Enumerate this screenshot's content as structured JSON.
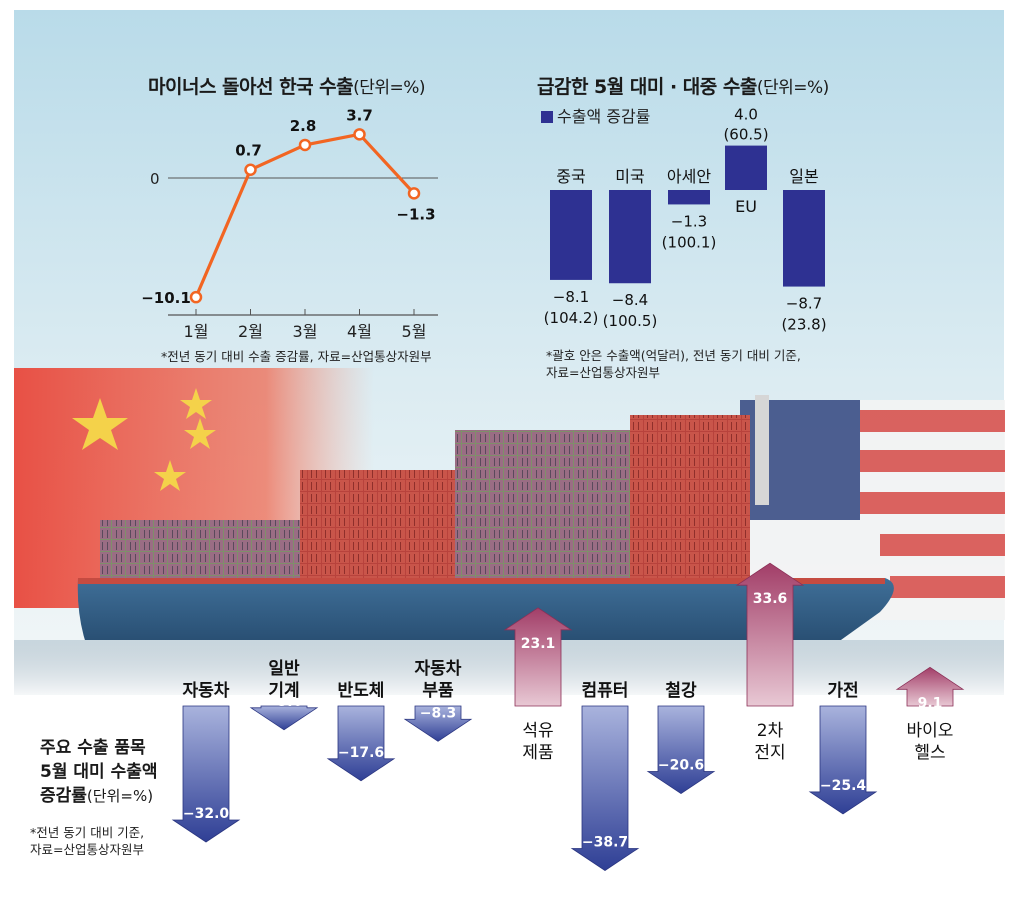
{
  "chart_data": [
    {
      "type": "line",
      "title": "마이너스 돌아선 한국 수출",
      "unit": "(단위=%)",
      "categories": [
        "1월",
        "2월",
        "3월",
        "4월",
        "5월"
      ],
      "values": [
        -10.1,
        0.7,
        2.8,
        3.7,
        -1.3
      ],
      "value_labels": [
        "−10.1",
        "0.7",
        "2.8",
        "3.7",
        "−1.3"
      ],
      "zero_label": "0",
      "ylim": [
        -11,
        5
      ],
      "note": "*전년 동기 대비 수출 증감률, 자료=산업통상자원부",
      "color": "#f26522"
    },
    {
      "type": "bar",
      "title": "급감한 5월 대미 · 대중 수출",
      "unit": "(단위=%)",
      "legend": "수출액 증감률",
      "categories": [
        "중국",
        "미국",
        "아세안",
        "EU",
        "일본"
      ],
      "values": [
        -8.1,
        -8.4,
        -1.3,
        4.0,
        -8.7
      ],
      "value_labels": [
        "−8.1",
        "−8.4",
        "−1.3",
        "4.0",
        "−8.7"
      ],
      "amount_labels": [
        "(104.2)",
        "(100.5)",
        "(100.1)",
        "(60.5)",
        "(23.8)"
      ],
      "note_lines": [
        "*괄호 안은 수출액(억달러), 전년 동기 대비 기준,",
        "자료=산업통상자원부"
      ],
      "color": "#2e3192"
    },
    {
      "type": "bar",
      "title_lines": [
        "주요 수출 품목",
        "5월 대미 수출액",
        "증감률"
      ],
      "unit": "(단위=%)",
      "categories": [
        [
          "자동차"
        ],
        [
          "일반",
          "기계"
        ],
        [
          "반도체"
        ],
        [
          "자동차",
          "부품"
        ],
        [
          "석유",
          "제품"
        ],
        [
          "컴퓨터"
        ],
        [
          "철강"
        ],
        [
          "2차",
          "전지"
        ],
        [
          "가전"
        ],
        [
          "바이오",
          "헬스"
        ]
      ],
      "values": [
        -32.0,
        -5.6,
        -17.6,
        -8.3,
        23.1,
        -38.7,
        -20.6,
        33.6,
        -25.4,
        9.1
      ],
      "value_labels": [
        "−32.0",
        "−5.6",
        "−17.6",
        "−8.3",
        "23.1",
        "−38.7",
        "−20.6",
        "33.6",
        "−25.4",
        "9.1"
      ],
      "note_lines": [
        "*전년 동기 대비 기준,",
        "자료=산업통상자원부"
      ],
      "negative_color": "#3a4a9e",
      "positive_color": "#a9426a"
    }
  ]
}
